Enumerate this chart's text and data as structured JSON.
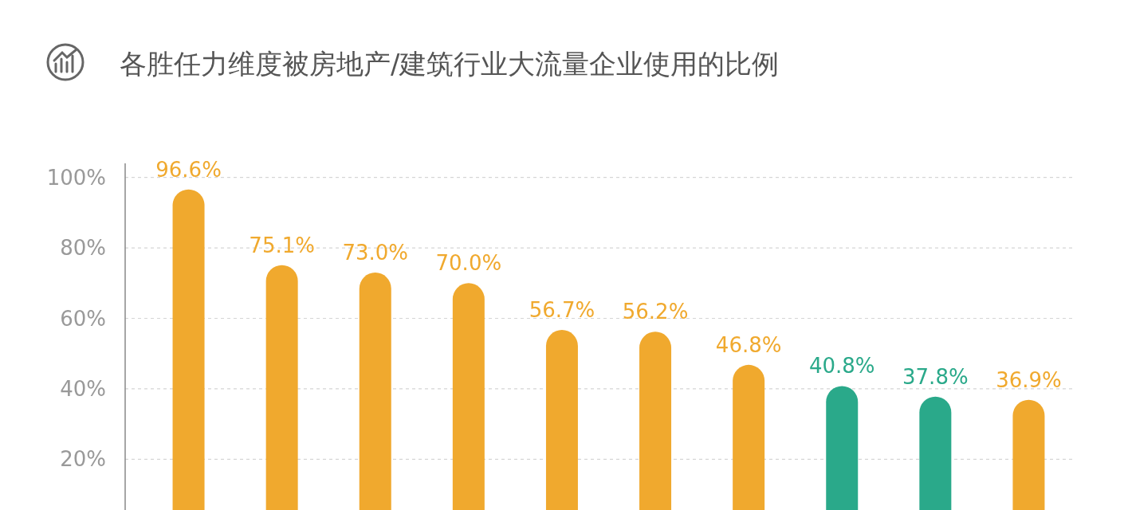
{
  "chart_data": {
    "type": "bar",
    "title": "各胜任力维度被房地产/建筑行业大流量企业使用的比例",
    "categories": [
      null,
      null,
      null,
      null,
      null,
      null,
      null,
      null,
      null,
      null
    ],
    "values": [
      96.6,
      75.1,
      73.0,
      70.0,
      56.7,
      56.2,
      46.8,
      40.8,
      37.8,
      36.9
    ],
    "value_labels": [
      "96.6%",
      "75.1%",
      "73.0%",
      "70.0%",
      "56.7%",
      "56.2%",
      "46.8%",
      "40.8%",
      "37.8%",
      "36.9%"
    ],
    "colors": [
      "#f0a92e",
      "#f0a92e",
      "#f0a92e",
      "#f0a92e",
      "#f0a92e",
      "#f0a92e",
      "#f0a92e",
      "#2aa98a",
      "#2aa98a",
      "#f0a92e"
    ],
    "ylim": [
      5.6,
      104
    ],
    "yticks": [
      {
        "value": 20,
        "label": "20%"
      },
      {
        "value": 40,
        "label": "40%"
      },
      {
        "value": 60,
        "label": "60%"
      },
      {
        "value": 80,
        "label": "80%"
      },
      {
        "value": 100,
        "label": "100%"
      }
    ],
    "grid": "y",
    "tick_labels": "y"
  }
}
